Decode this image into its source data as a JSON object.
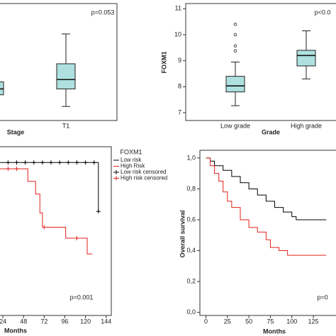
{
  "chart_data": [
    {
      "type": "box",
      "annotation": "p=0.053",
      "xlabel": "Stage",
      "categories": [
        null,
        "T1"
      ],
      "color": "#aee0e0",
      "ylim": [
        0,
        100
      ],
      "boxes": [
        {
          "whislo": 12,
          "q1": 22,
          "med": 27,
          "q3": 33,
          "whishi": 40,
          "fliers": []
        },
        {
          "whislo": 12,
          "q1": 27,
          "med": 35,
          "q3": 48.5,
          "whishi": 74,
          "fliers": []
        }
      ]
    },
    {
      "type": "box",
      "annotation": "p<0.0",
      "xlabel": "Grade",
      "ylabel": "FOXM1",
      "categories": [
        "Low grade",
        "High grade"
      ],
      "color": "#aee0e0",
      "ylim": [
        6.7,
        11.2
      ],
      "yticks": [
        7,
        8,
        9,
        10,
        11
      ],
      "boxes": [
        {
          "whislo": 7.27,
          "q1": 7.8,
          "med": 8.03,
          "q3": 8.4,
          "whishi": 8.95,
          "fliers": [
            9.38,
            9.57,
            10.0,
            10.4
          ]
        },
        {
          "whislo": 8.3,
          "q1": 8.8,
          "med": 9.2,
          "q3": 9.4,
          "whishi": 10.15,
          "fliers": []
        }
      ]
    },
    {
      "type": "line",
      "annotation": "p=0.001",
      "xlabel": "Months",
      "legend_title": "FOXM1",
      "legend": "upper right outside",
      "xlim": [
        19,
        150
      ],
      "xticks": [
        24,
        48,
        72,
        96,
        120,
        144
      ],
      "ylim": [
        0,
        1.07
      ],
      "series": [
        {
          "name": "Low risk",
          "color": "#000000",
          "step": true,
          "x": [
            0,
            135,
            135
          ],
          "values": [
            0.97,
            0.66,
            0.66
          ]
        },
        {
          "name": "High Risk",
          "color": "#e0201b",
          "step": true,
          "x": [
            0,
            53,
            62,
            67,
            70,
            97,
            122,
            128
          ],
          "values": [
            0.93,
            0.85,
            0.77,
            0.65,
            0.56,
            0.49,
            0.39,
            0.39
          ]
        },
        {
          "name": "Low risk censored",
          "color": "#000000",
          "marker": "+",
          "x": [
            30,
            40,
            50,
            60,
            70,
            80,
            90,
            100,
            110,
            120,
            130,
            135
          ],
          "values": [
            0.97,
            0.97,
            0.97,
            0.97,
            0.97,
            0.97,
            0.97,
            0.97,
            0.97,
            0.97,
            0.97,
            0.66
          ]
        },
        {
          "name": "High risk censored",
          "color": "#e0201b",
          "marker": "+",
          "x": [
            30,
            40,
            72,
            110
          ],
          "values": [
            0.93,
            0.93,
            0.56,
            0.49
          ]
        }
      ]
    },
    {
      "type": "line",
      "annotation": "p=0",
      "xlabel": "Months",
      "ylabel": "Overall survival",
      "xlim": [
        -7,
        153
      ],
      "xticks": [
        0,
        25,
        50,
        75,
        100,
        125
      ],
      "ylim": [
        -0.02,
        1.05
      ],
      "yticks": [
        {
          "value": 0,
          "label": "0,0"
        },
        {
          "value": 0.2,
          "label": "0,2"
        },
        {
          "value": 0.4,
          "label": "0,4"
        },
        {
          "value": 0.6,
          "label": "0,6"
        },
        {
          "value": 0.8,
          "label": "0,8"
        },
        {
          "value": 1,
          "label": "1,0"
        }
      ],
      "series": [
        {
          "color": "#000000",
          "step": true,
          "x": [
            0,
            5,
            10,
            20,
            30,
            40,
            50,
            60,
            70,
            80,
            90,
            100,
            105,
            140
          ],
          "values": [
            1,
            0.98,
            0.95,
            0.92,
            0.88,
            0.84,
            0.8,
            0.76,
            0.72,
            0.68,
            0.65,
            0.62,
            0.6,
            0.6
          ]
        },
        {
          "color": "#e0201b",
          "step": true,
          "x": [
            0,
            5,
            10,
            15,
            20,
            25,
            30,
            40,
            50,
            60,
            70,
            75,
            85,
            95,
            140
          ],
          "values": [
            1,
            0.95,
            0.9,
            0.85,
            0.78,
            0.72,
            0.68,
            0.6,
            0.55,
            0.52,
            0.47,
            0.42,
            0.4,
            0.37,
            0.37
          ]
        }
      ]
    }
  ]
}
